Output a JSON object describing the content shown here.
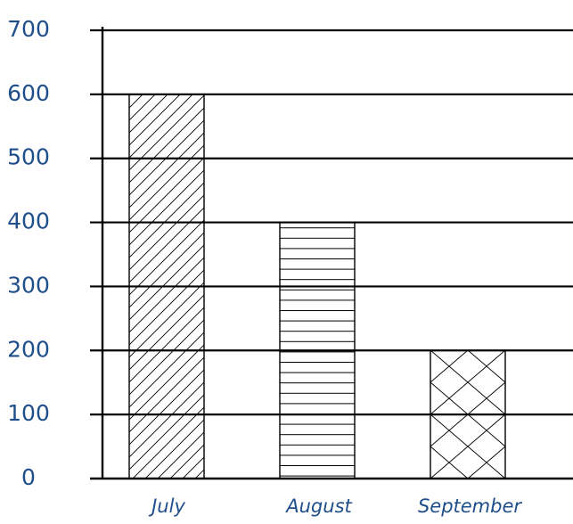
{
  "chart_data": {
    "type": "bar",
    "categories": [
      "July",
      "August",
      "September"
    ],
    "values": [
      600,
      400,
      200
    ],
    "patterns": [
      "diagonal-hatch",
      "horizontal-hatch",
      "crosshatch"
    ],
    "ylim": [
      0,
      700
    ],
    "yticks": [
      0,
      100,
      200,
      300,
      400,
      500,
      600,
      700
    ],
    "grid": true,
    "title": "",
    "xlabel": "",
    "ylabel": "",
    "colors": {
      "tick_label": "#1f4e8a",
      "lines": "#000000",
      "background": "#ffffff"
    }
  }
}
